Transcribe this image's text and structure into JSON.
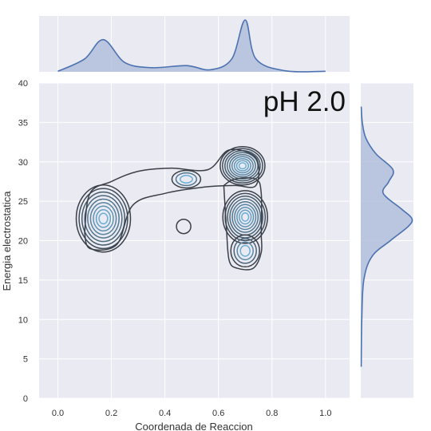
{
  "chart_data": {
    "type": "kde-joint",
    "title": "",
    "annotation": "pH 2.0",
    "xlabel": "Coordenada de Reaccion",
    "ylabel": "Energia electrostatica",
    "xlim": [
      -0.07,
      1.09
    ],
    "ylim": [
      0,
      40
    ],
    "xticks": [
      "0.0",
      "0.2",
      "0.4",
      "0.6",
      "0.8",
      "1.0"
    ],
    "yticks": [
      "0",
      "5",
      "10",
      "15",
      "20",
      "25",
      "30",
      "35",
      "40"
    ],
    "grid": true,
    "clusters": [
      {
        "x": 0.17,
        "y": 22.8,
        "weight": 1.0
      },
      {
        "x": 0.48,
        "y": 27.8,
        "weight": 0.35
      },
      {
        "x": 0.47,
        "y": 21.8,
        "weight": 0.2
      },
      {
        "x": 0.69,
        "y": 29.5,
        "weight": 1.1
      },
      {
        "x": 0.7,
        "y": 23.0,
        "weight": 1.1
      },
      {
        "x": 0.7,
        "y": 18.7,
        "weight": 0.6
      }
    ],
    "marginal_x": {
      "x": [
        0.0,
        0.1,
        0.17,
        0.25,
        0.35,
        0.48,
        0.57,
        0.65,
        0.7,
        0.74,
        0.85,
        1.0
      ],
      "density": [
        0.01,
        0.25,
        0.62,
        0.18,
        0.08,
        0.12,
        0.04,
        0.25,
        1.0,
        0.25,
        0.02,
        0.01
      ]
    },
    "marginal_y": {
      "y": [
        4,
        10,
        15,
        18,
        20,
        21.8,
        22.8,
        24,
        26,
        27.5,
        29,
        31,
        33,
        35,
        37
      ],
      "density": [
        0.01,
        0.02,
        0.06,
        0.22,
        0.58,
        0.93,
        1.0,
        0.8,
        0.44,
        0.55,
        0.63,
        0.3,
        0.1,
        0.03,
        0.01
      ]
    },
    "colors": {
      "background": "#eaeaf2",
      "grid": "#ffffff",
      "contour_outer": "#3a3f48",
      "contour_inner": "#6baed6",
      "marginal_line": "#4c72b0",
      "marginal_fill": "#a9b8d8"
    }
  }
}
